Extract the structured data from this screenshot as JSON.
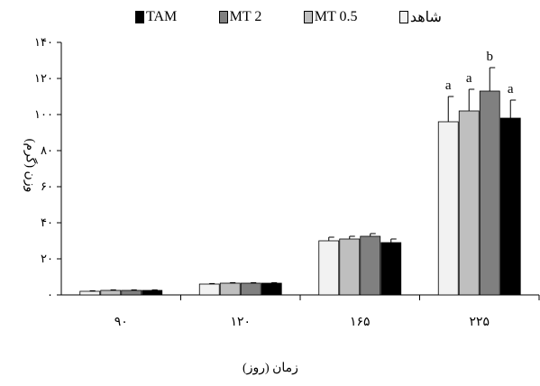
{
  "chart_data": {
    "type": "bar",
    "categories": [
      "۹۰",
      "۱۲۰",
      "۱۶۵",
      "۲۲۵"
    ],
    "series": [
      {
        "name": "شاهد",
        "color": "#f2f2f2",
        "values": [
          2,
          6,
          30,
          96
        ],
        "errors": [
          0.3,
          0.3,
          2,
          14
        ]
      },
      {
        "name": "MT 0.5",
        "color": "#bfbfbf",
        "values": [
          2.5,
          6.5,
          31,
          102
        ],
        "errors": [
          0.3,
          0.3,
          1.5,
          12
        ]
      },
      {
        "name": "MT 2",
        "color": "#808080",
        "values": [
          2.5,
          6.5,
          32.5,
          113
        ],
        "errors": [
          0.3,
          0.3,
          1.5,
          13
        ]
      },
      {
        "name": "TAM",
        "color": "#000000",
        "values": [
          2.5,
          6.5,
          29,
          98
        ],
        "errors": [
          0.3,
          0.3,
          2,
          10
        ]
      }
    ],
    "annotations": [
      {
        "category": "۲۲۵",
        "series": "شاهد",
        "text": "a"
      },
      {
        "category": "۲۲۵",
        "series": "MT 0.5",
        "text": "a"
      },
      {
        "category": "۲۲۵",
        "series": "MT 2",
        "text": "b"
      },
      {
        "category": "۲۲۵",
        "series": "TAM",
        "text": "a"
      }
    ],
    "yticks": [
      0,
      20,
      40,
      60,
      80,
      100,
      120,
      140
    ],
    "ytick_labels": [
      "۰",
      "۲۰",
      "۴۰",
      "۶۰",
      "۸۰",
      "۱۰۰",
      "۱۲۰",
      "۱۴۰"
    ],
    "ylim": [
      0,
      140
    ],
    "xlabel": "زمان (روز)",
    "ylabel": "وزن (گرم)",
    "legend_position": "top",
    "grid": false
  }
}
